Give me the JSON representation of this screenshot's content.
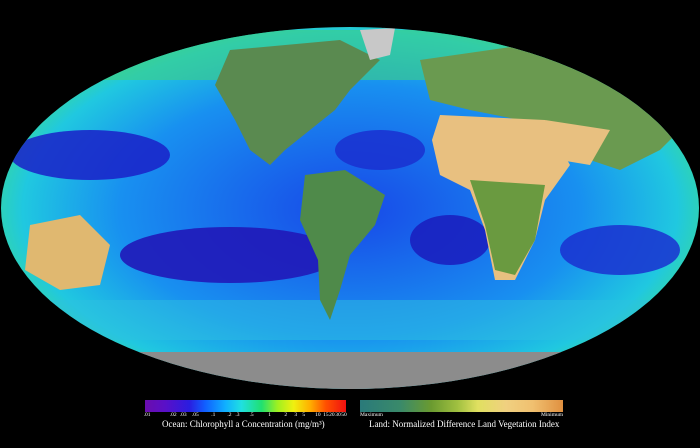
{
  "legend": {
    "ocean": {
      "ticks": [
        ".01",
        ".02",
        ".03",
        ".05",
        ".1",
        ".2",
        ".3",
        ".5",
        "1",
        "2",
        "3",
        "5",
        "10",
        "15",
        "20",
        "30",
        "50"
      ],
      "caption": "Ocean:  Chlorophyll a Concentration (mg/m³)"
    },
    "land": {
      "min_label": "Minimum",
      "max_label": "Maximum",
      "caption": "Land:  Normalized Difference Land Vegetation Index"
    }
  },
  "colors": {
    "background": "#000000",
    "deep_ocean": "#1a20c8",
    "coastal": "#20e0a0",
    "land": "#6a9a50",
    "desert": "#e8c080",
    "ice": "#c8c8c8"
  }
}
